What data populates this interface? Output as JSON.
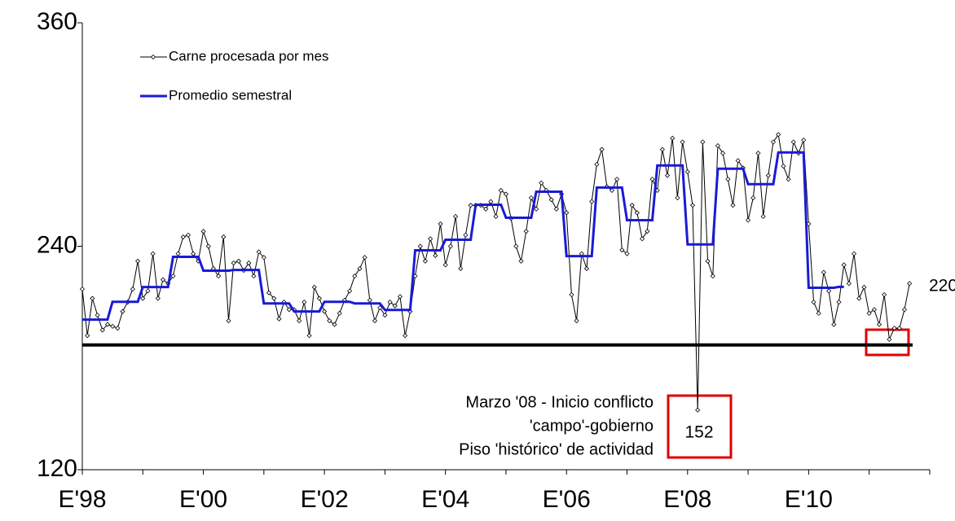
{
  "chart_data": {
    "type": "line",
    "categories": [
      "E'98",
      null,
      null,
      null,
      null,
      null,
      null,
      null,
      null,
      null,
      null,
      null,
      null,
      null,
      null,
      null,
      null,
      null,
      null,
      null,
      null,
      null,
      null,
      null,
      "E'00",
      null,
      null,
      null,
      null,
      null,
      null,
      null,
      null,
      null,
      null,
      null,
      null,
      null,
      null,
      null,
      null,
      null,
      null,
      null,
      null,
      null,
      null,
      null,
      "E'02",
      null,
      null,
      null,
      null,
      null,
      null,
      null,
      null,
      null,
      null,
      null,
      null,
      null,
      null,
      null,
      null,
      null,
      null,
      null,
      null,
      null,
      null,
      null,
      "E'04",
      null,
      null,
      null,
      null,
      null,
      null,
      null,
      null,
      null,
      null,
      null,
      null,
      null,
      null,
      null,
      null,
      null,
      null,
      null,
      null,
      null,
      null,
      null,
      "E'06",
      null,
      null,
      null,
      null,
      null,
      null,
      null,
      null,
      null,
      null,
      null,
      null,
      null,
      null,
      null,
      null,
      null,
      null,
      null,
      null,
      null,
      null,
      null,
      "E'08",
      null,
      null,
      null,
      null,
      null,
      null,
      null,
      null,
      null,
      null,
      null,
      null,
      null,
      null,
      null,
      null,
      null,
      null,
      null,
      null,
      null,
      null,
      null,
      "E'10",
      null,
      null,
      null,
      null,
      null,
      null,
      null,
      null,
      null,
      null,
      null,
      null,
      null,
      null,
      null,
      null,
      null,
      null,
      null,
      null
    ],
    "series": [
      {
        "name": "Carne procesada por mes",
        "color": "#000000",
        "values": [
          217,
          192,
          212,
          203,
          195,
          198,
          197,
          196,
          205,
          210,
          217,
          232,
          212,
          216,
          236,
          212,
          222,
          220,
          224,
          236,
          245,
          246,
          236,
          232,
          248,
          240,
          228,
          224,
          245,
          200,
          231,
          232,
          227,
          231,
          224,
          237,
          234,
          215,
          212,
          201,
          210,
          206,
          206,
          200,
          210,
          192,
          218,
          212,
          205,
          200,
          198,
          204,
          211,
          216,
          224,
          228,
          234,
          211,
          200,
          207,
          203,
          210,
          208,
          213,
          192,
          205,
          224,
          240,
          232,
          244,
          235,
          252,
          230,
          240,
          256,
          228,
          246,
          262,
          262,
          262,
          260,
          264,
          256,
          270,
          268,
          255,
          240,
          232,
          248,
          266,
          260,
          274,
          270,
          265,
          260,
          268,
          258,
          214,
          200,
          236,
          228,
          264,
          284,
          292,
          272,
          270,
          276,
          238,
          236,
          262,
          258,
          244,
          248,
          276,
          270,
          292,
          278,
          298,
          266,
          296,
          280,
          262,
          152,
          296,
          232,
          224,
          294,
          290,
          276,
          262,
          286,
          282,
          254,
          266,
          290,
          256,
          278,
          296,
          300,
          283,
          276,
          296,
          290,
          297,
          252,
          210,
          204,
          226,
          216,
          198,
          210,
          230,
          220,
          236,
          212,
          218,
          204,
          206,
          198,
          214,
          190,
          196,
          196,
          206,
          220
        ]
      },
      {
        "name": "Promedio semestral",
        "color": "#1a1ad6",
        "values": [
          200.6,
          200.6,
          200.6,
          200.6,
          200.6,
          200.6,
          210.2,
          210.2,
          210.2,
          210.2,
          210.2,
          210.2,
          218.1,
          218.1,
          218.1,
          218.1,
          218.1,
          218.1,
          234.3,
          234.3,
          234.3,
          234.3,
          234.3,
          234.3,
          226.9,
          226.9,
          226.9,
          226.9,
          226.9,
          226.9,
          227.3,
          227.3,
          227.3,
          227.3,
          227.3,
          227.3,
          209.3,
          209.3,
          209.3,
          209.3,
          209.3,
          209.3,
          205,
          205,
          205,
          205,
          205,
          205,
          210.2,
          210.2,
          210.2,
          210.2,
          210.2,
          210.2,
          209.3,
          209.3,
          209.3,
          209.3,
          209.3,
          209.3,
          205.8,
          205.8,
          205.8,
          205.8,
          205.8,
          205.8,
          237.8,
          237.8,
          237.8,
          237.8,
          237.8,
          237.8,
          243.5,
          243.5,
          243.5,
          243.5,
          243.5,
          243.5,
          262.3,
          262.3,
          262.3,
          262.3,
          262.3,
          262.3,
          255.3,
          255.3,
          255.3,
          255.3,
          255.3,
          255.3,
          269.3,
          269.3,
          269.3,
          269.3,
          269.3,
          269.3,
          234.7,
          234.7,
          234.7,
          234.7,
          234.7,
          234.7,
          271.5,
          271.5,
          271.5,
          271.5,
          271.5,
          271.5,
          254,
          254,
          254,
          254,
          254,
          254,
          283.4,
          283.4,
          283.4,
          283.4,
          283.4,
          283.4,
          241,
          241,
          241,
          241,
          241,
          241,
          281.6,
          281.6,
          281.6,
          281.6,
          281.6,
          281.6,
          273.3,
          273.3,
          273.3,
          273.3,
          273.3,
          273.3,
          290.4,
          290.4,
          290.4,
          290.4,
          290.4,
          290.4,
          217.7,
          217.7,
          217.7,
          217.7,
          217.7,
          217.7,
          218.2,
          218.2,
          null,
          null,
          null,
          null,
          null,
          null,
          null,
          null,
          null,
          null,
          null,
          null,
          null
        ]
      }
    ],
    "ylim": [
      120,
      360
    ],
    "yticks": [
      120,
      240,
      360
    ],
    "reference_line": 187,
    "annotation": [
      "Marzo '08 - Inicio conflicto",
      "'campo'-gobierno",
      "Piso 'histórico' de actividad"
    ],
    "legend": "top-left"
  }
}
